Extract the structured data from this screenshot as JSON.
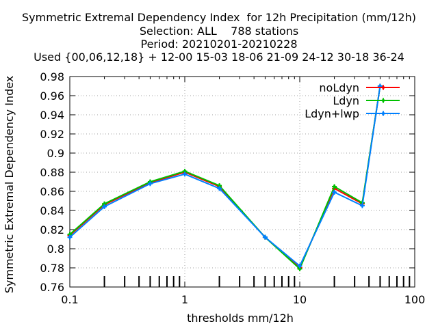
{
  "chart_data": {
    "type": "line",
    "title": [
      "Symmetric Extremal Dependency Index  for 12h Precipitation (mm/12h)",
      "Selection: ALL    788 stations",
      "Period: 20210201-20210228",
      "Used {00,06,12,18} + 12-00 15-03 18-06 21-09 24-12 30-18 36-24"
    ],
    "xlabel": "thresholds mm/12h",
    "ylabel": "Symmetric Extremal Dependency Index",
    "x_scale": "log",
    "xlim": [
      0.1,
      100
    ],
    "ylim": [
      0.76,
      0.98
    ],
    "x_ticks": [
      0.1,
      1,
      10,
      100
    ],
    "x_tick_labels": [
      "0.1",
      "1",
      "10",
      "100"
    ],
    "y_ticks": [
      0.76,
      0.78,
      0.8,
      0.82,
      0.84,
      0.86,
      0.88,
      0.9,
      0.92,
      0.94,
      0.96,
      0.98
    ],
    "y_tick_labels": [
      "0.76",
      "0.78",
      "0.8",
      "0.82",
      "0.84",
      "0.86",
      "0.88",
      "0.9",
      "0.92",
      "0.94",
      "0.96",
      "0.98"
    ],
    "grid": true,
    "legend_position": "top-right",
    "x": [
      0.1,
      0.2,
      0.5,
      1,
      2,
      5,
      10,
      20,
      35,
      50
    ],
    "series": [
      {
        "name": "noLdyn",
        "color": "#ff0000",
        "values": [
          0.814,
          0.846,
          0.869,
          0.88,
          0.865,
          0.812,
          0.78,
          0.863,
          0.847,
          0.97
        ]
      },
      {
        "name": "Ldyn",
        "color": "#00c000",
        "values": [
          0.815,
          0.847,
          0.87,
          0.881,
          0.866,
          0.812,
          0.779,
          0.865,
          0.848,
          0.97
        ]
      },
      {
        "name": "Ldyn+lwp",
        "color": "#0080ff",
        "values": [
          0.812,
          0.844,
          0.868,
          0.878,
          0.863,
          0.812,
          0.782,
          0.859,
          0.845,
          0.97
        ]
      }
    ]
  }
}
